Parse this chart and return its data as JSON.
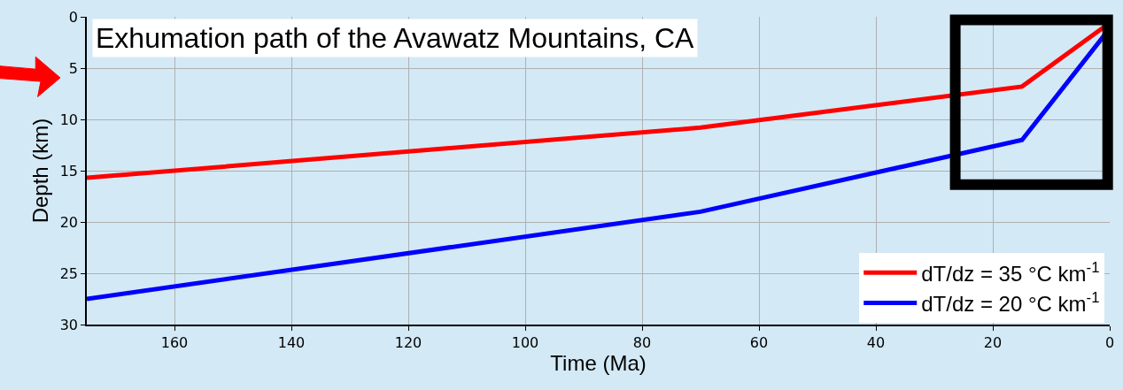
{
  "chart_data": {
    "type": "line",
    "title": "Exhumation path of the Avawatz Mountains, CA",
    "xlabel": "Time (Ma)",
    "ylabel": "Depth (km)",
    "xlim": [
      175,
      0
    ],
    "xticks": [
      160,
      140,
      120,
      100,
      80,
      60,
      40,
      20,
      0
    ],
    "ylim": [
      30,
      0
    ],
    "yticks": [
      0,
      5,
      10,
      15,
      20,
      25,
      30
    ],
    "grid": true,
    "legend": "bottom right",
    "line_style": "solid",
    "marker": "none",
    "series": [
      {
        "name": "dT/dz = 35 °C km$^{-1}$",
        "color": "#ff0000",
        "x": [
          175,
          70,
          15,
          0.5
        ],
        "values": [
          15.7,
          10.8,
          6.8,
          0.8
        ]
      },
      {
        "name": "dT/dz = 20 °C km$^{-1}$",
        "color": "#0000ff",
        "x": [
          175,
          70,
          15,
          0.5
        ],
        "values": [
          27.5,
          19,
          12,
          1.5
        ]
      }
    ]
  }
}
